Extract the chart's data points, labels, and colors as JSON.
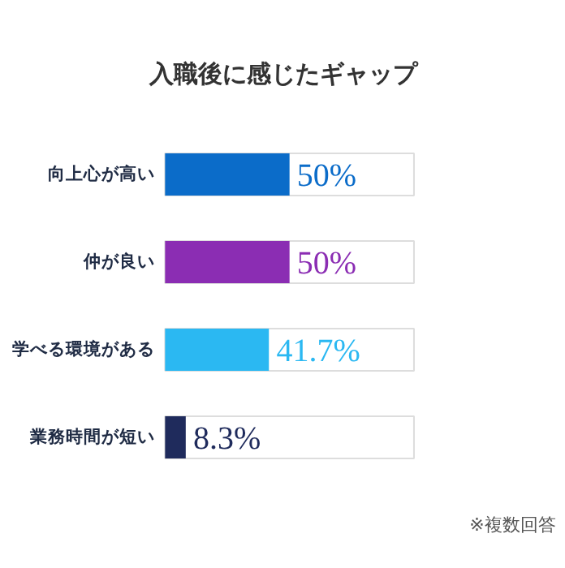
{
  "chart_data": {
    "type": "bar",
    "orientation": "horizontal",
    "title": "入職後に感じたギャップ",
    "categories": [
      "向上心が高い",
      "仲が良い",
      "学べる環境がある",
      "業務時間が短い"
    ],
    "values": [
      50,
      50,
      41.7,
      8.3
    ],
    "colors": [
      "#0b6cc9",
      "#8b2db3",
      "#2bb8f2",
      "#1f2b5c"
    ],
    "value_labels": [
      "50%",
      "50%",
      "41.7%",
      "8.3%"
    ],
    "xlim": [
      0,
      100
    ],
    "tick_labels": false,
    "annotations": [
      "※複数回答"
    ]
  }
}
